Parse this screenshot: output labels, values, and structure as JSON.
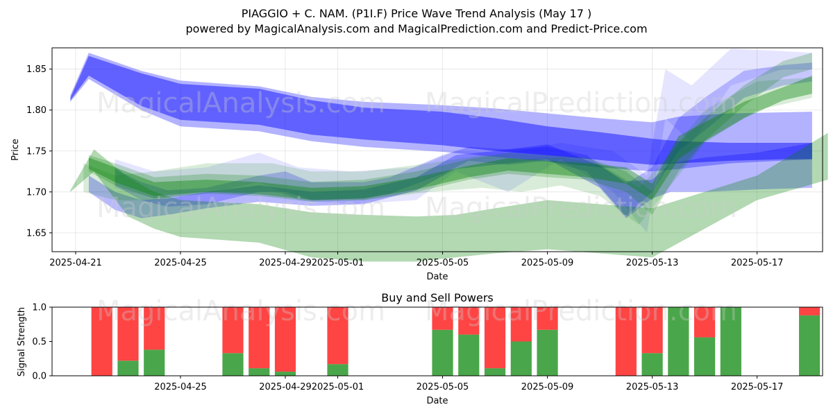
{
  "chart_data": [
    {
      "type": "area",
      "title_line1": "PIAGGIO + C. NAM. (P1I.F) Price Wave Trend Analysis (May 17 )",
      "title_line2": "powered by MagicalAnalysis.com and MagicalPrediction.com and Predict-Price.com",
      "xlabel": "Date",
      "ylabel": "Price",
      "x_range_days": [
        -0.9,
        28.5
      ],
      "x_origin": "2025-04-21",
      "ylim": [
        1.627,
        1.876
      ],
      "grid": true,
      "x_ticks": [
        {
          "day": 0,
          "label": "2025-04-21"
        },
        {
          "day": 4,
          "label": "2025-04-25"
        },
        {
          "day": 8,
          "label": "2025-04-29"
        },
        {
          "day": 10,
          "label": "2025-05-01"
        },
        {
          "day": 14,
          "label": "2025-05-05"
        },
        {
          "day": 18,
          "label": "2025-05-09"
        },
        {
          "day": 22,
          "label": "2025-05-13"
        },
        {
          "day": 26,
          "label": "2025-05-17"
        }
      ],
      "y_ticks": [
        1.65,
        1.7,
        1.75,
        1.8,
        1.85
      ],
      "y_tick_labels": [
        "1.65",
        "1.70",
        "1.75",
        "1.80",
        "1.85"
      ],
      "series": [
        {
          "name": "blue-band-1",
          "color": "#0000ff",
          "opacity": 0.45,
          "days": [
            -0.2,
            0.5,
            2.5,
            4,
            7,
            9,
            11,
            14,
            16,
            18,
            20,
            22,
            23,
            25,
            27,
            28.1
          ],
          "upper": [
            1.815,
            1.866,
            1.845,
            1.832,
            1.826,
            1.812,
            1.803,
            1.798,
            1.79,
            1.78,
            1.773,
            1.765,
            1.762,
            1.76,
            1.76,
            1.76
          ],
          "lower": [
            1.812,
            1.842,
            1.805,
            1.788,
            1.782,
            1.77,
            1.764,
            1.757,
            1.75,
            1.745,
            1.739,
            1.733,
            1.735,
            1.738,
            1.74,
            1.74
          ]
        },
        {
          "name": "blue-band-2",
          "color": "#0000ff",
          "opacity": 0.3,
          "days": [
            -0.2,
            0.5,
            2.5,
            4,
            7,
            9,
            11,
            14,
            16,
            18,
            20,
            22,
            23,
            25,
            28.1
          ],
          "upper": [
            1.818,
            1.87,
            1.848,
            1.836,
            1.829,
            1.816,
            1.81,
            1.806,
            1.802,
            1.796,
            1.79,
            1.785,
            1.792,
            1.796,
            1.798
          ],
          "lower": [
            1.81,
            1.838,
            1.8,
            1.78,
            1.774,
            1.762,
            1.755,
            1.749,
            1.743,
            1.737,
            1.73,
            1.725,
            1.728,
            1.735,
            1.74
          ]
        },
        {
          "name": "blue-band-3",
          "color": "#0000ff",
          "opacity": 0.28,
          "days": [
            0.5,
            1.5,
            2.5,
            3.5,
            5,
            7,
            9,
            11,
            13,
            14.5,
            16,
            18,
            20,
            21,
            22,
            22.7,
            24,
            26,
            28.1
          ],
          "upper": [
            1.72,
            1.7,
            1.69,
            1.692,
            1.7,
            1.708,
            1.7,
            1.703,
            1.718,
            1.745,
            1.75,
            1.758,
            1.732,
            1.713,
            1.715,
            1.735,
            1.742,
            1.748,
            1.76
          ],
          "lower": [
            1.7,
            1.678,
            1.668,
            1.672,
            1.68,
            1.688,
            1.683,
            1.685,
            1.702,
            1.728,
            1.733,
            1.74,
            1.705,
            1.668,
            1.692,
            1.7,
            1.7,
            1.703,
            1.705
          ]
        },
        {
          "name": "blue-band-4",
          "color": "#0000ff",
          "opacity": 0.22,
          "days": [
            1.5,
            2.5,
            3.5,
            5,
            7,
            8,
            9,
            11,
            12,
            14,
            15,
            16.5,
            18,
            19.5,
            21,
            22,
            23,
            24,
            25.5,
            27,
            28.1
          ],
          "upper": [
            1.728,
            1.712,
            1.702,
            1.705,
            1.72,
            1.725,
            1.712,
            1.712,
            1.718,
            1.745,
            1.755,
            1.752,
            1.755,
            1.745,
            1.71,
            1.73,
            1.79,
            1.815,
            1.848,
            1.855,
            1.858
          ],
          "lower": [
            1.708,
            1.69,
            1.682,
            1.685,
            1.7,
            1.7,
            1.69,
            1.692,
            1.698,
            1.722,
            1.738,
            1.733,
            1.738,
            1.725,
            1.67,
            1.7,
            1.75,
            1.775,
            1.815,
            1.83,
            1.835
          ]
        },
        {
          "name": "blue-band-5",
          "color": "#0000ff",
          "opacity": 0.1,
          "days": [
            1.5,
            3,
            5,
            7,
            8.5,
            10.5,
            13,
            14.5,
            16.5,
            18.5,
            20.5,
            21.8,
            22.5,
            23.5,
            25,
            27,
            28.1
          ],
          "upper": [
            1.74,
            1.725,
            1.73,
            1.748,
            1.73,
            1.725,
            1.73,
            1.75,
            1.748,
            1.76,
            1.75,
            1.72,
            1.85,
            1.83,
            1.875,
            1.872,
            1.87
          ],
          "lower": [
            1.705,
            1.692,
            1.698,
            1.712,
            1.69,
            1.685,
            1.69,
            1.725,
            1.7,
            1.74,
            1.7,
            1.65,
            1.79,
            1.76,
            1.83,
            1.85,
            1.85
          ]
        },
        {
          "name": "green-band-1",
          "color": "#008000",
          "opacity": 0.3,
          "days": [
            -0.2,
            0.7,
            2,
            3,
            4,
            7,
            9,
            11,
            13,
            14.5,
            16,
            18,
            20,
            22,
            24,
            26,
            28.7
          ],
          "upper": [
            1.702,
            1.752,
            1.718,
            1.7,
            1.69,
            1.685,
            1.675,
            1.672,
            1.67,
            1.672,
            1.68,
            1.69,
            1.685,
            1.68,
            1.7,
            1.72,
            1.772
          ],
          "lower": [
            1.7,
            1.725,
            1.67,
            1.655,
            1.645,
            1.638,
            1.62,
            1.615,
            1.615,
            1.62,
            1.625,
            1.63,
            1.625,
            1.62,
            1.655,
            1.69,
            1.715
          ]
        },
        {
          "name": "green-band-2",
          "color": "#008000",
          "opacity": 0.38,
          "days": [
            0.5,
            1.5,
            3,
            5,
            7,
            9,
            11,
            13,
            15,
            16.5,
            18,
            19.5,
            21,
            22,
            23,
            24,
            25.5,
            27,
            28.1
          ],
          "upper": [
            1.742,
            1.73,
            1.712,
            1.715,
            1.712,
            1.705,
            1.707,
            1.718,
            1.732,
            1.741,
            1.738,
            1.735,
            1.73,
            1.71,
            1.768,
            1.785,
            1.81,
            1.828,
            1.842
          ],
          "lower": [
            1.728,
            1.712,
            1.695,
            1.7,
            1.697,
            1.69,
            1.692,
            1.703,
            1.718,
            1.726,
            1.722,
            1.718,
            1.71,
            1.69,
            1.74,
            1.762,
            1.79,
            1.812,
            1.82
          ]
        },
        {
          "name": "green-band-3",
          "color": "#008000",
          "opacity": 0.22,
          "days": [
            0.5,
            1.5,
            3,
            5,
            7,
            9,
            11,
            13,
            15,
            16.5,
            18,
            19.5,
            21,
            22,
            23,
            24,
            25.5,
            27,
            28.1
          ],
          "upper": [
            1.745,
            1.735,
            1.718,
            1.722,
            1.72,
            1.712,
            1.715,
            1.725,
            1.74,
            1.748,
            1.745,
            1.742,
            1.725,
            1.7,
            1.76,
            1.79,
            1.83,
            1.86,
            1.87
          ],
          "lower": [
            1.725,
            1.708,
            1.692,
            1.698,
            1.695,
            1.688,
            1.69,
            1.7,
            1.715,
            1.722,
            1.718,
            1.715,
            1.7,
            1.672,
            1.725,
            1.762,
            1.805,
            1.84,
            1.85
          ]
        },
        {
          "name": "green-band-4",
          "color": "#008000",
          "opacity": 0.15,
          "days": [
            0.3,
            1.5,
            3,
            5,
            7.5,
            9,
            11,
            13.5,
            15.5,
            17,
            18.5,
            20,
            21.5,
            22.5,
            24,
            26,
            28.1
          ],
          "upper": [
            1.735,
            1.72,
            1.725,
            1.735,
            1.735,
            1.725,
            1.725,
            1.735,
            1.745,
            1.74,
            1.742,
            1.735,
            1.705,
            1.74,
            1.8,
            1.835,
            1.84
          ],
          "lower": [
            1.7,
            1.69,
            1.69,
            1.7,
            1.7,
            1.69,
            1.69,
            1.7,
            1.705,
            1.7,
            1.708,
            1.695,
            1.66,
            1.7,
            1.76,
            1.8,
            1.815
          ]
        }
      ],
      "watermarks": [
        "MagicalAnalysis.com",
        "MagicalPrediction.com",
        "MagicalAnalysis.com",
        "MagicalPrediction.com"
      ]
    },
    {
      "type": "bar",
      "title": "Buy and Sell Powers",
      "xlabel": "Date",
      "ylabel": "Signal Strength",
      "ylim": [
        0,
        1
      ],
      "x_range_days": [
        -0.9,
        28.5
      ],
      "y_tick_labels": [
        "0.0",
        "0.5",
        "1.0"
      ],
      "y_ticks": [
        0,
        0.5,
        1.0
      ],
      "x_ticks": [
        {
          "day": 4,
          "label": "2025-04-25"
        },
        {
          "day": 8,
          "label": "2025-04-29"
        },
        {
          "day": 10,
          "label": "2025-05-01"
        },
        {
          "day": 14,
          "label": "2025-05-05"
        },
        {
          "day": 18,
          "label": "2025-05-09"
        },
        {
          "day": 22,
          "label": "2025-05-13"
        },
        {
          "day": 26,
          "label": "2025-05-17"
        }
      ],
      "buy_color": "#4aa64a",
      "sell_color": "#ff4444",
      "bars": [
        {
          "day": 1,
          "buy": 0.0
        },
        {
          "day": 2,
          "buy": 0.22
        },
        {
          "day": 3,
          "buy": 0.38
        },
        {
          "day": 6,
          "buy": 0.33
        },
        {
          "day": 7,
          "buy": 0.11
        },
        {
          "day": 8,
          "buy": 0.06
        },
        {
          "day": 10,
          "buy": 0.17
        },
        {
          "day": 14,
          "buy": 0.67
        },
        {
          "day": 15,
          "buy": 0.6
        },
        {
          "day": 16,
          "buy": 0.11
        },
        {
          "day": 17,
          "buy": 0.5
        },
        {
          "day": 18,
          "buy": 0.67
        },
        {
          "day": 21,
          "buy": 0.0
        },
        {
          "day": 22,
          "buy": 0.33
        },
        {
          "day": 23,
          "buy": 1.0
        },
        {
          "day": 24,
          "buy": 0.56
        },
        {
          "day": 25,
          "buy": 1.0
        },
        {
          "day": 28,
          "buy": 0.88
        }
      ],
      "watermarks": [
        "MagicalAnalysis.com",
        "MagicalPrediction.com"
      ]
    }
  ]
}
